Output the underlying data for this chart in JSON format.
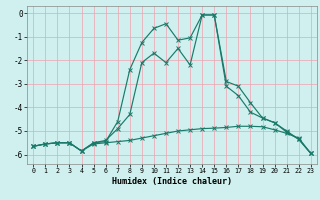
{
  "title": "",
  "xlabel": "Humidex (Indice chaleur)",
  "bg_color": "#cff0ee",
  "grid_color": "#f0a0b0",
  "line_color": "#1a7a6a",
  "xlim": [
    -0.5,
    23.5
  ],
  "ylim": [
    -6.4,
    0.3
  ],
  "xticks": [
    0,
    1,
    2,
    3,
    4,
    5,
    6,
    7,
    8,
    9,
    10,
    11,
    12,
    13,
    14,
    15,
    16,
    17,
    18,
    19,
    20,
    21,
    22,
    23
  ],
  "yticks": [
    0,
    -1,
    -2,
    -3,
    -4,
    -5,
    -6
  ],
  "line1_x": [
    0,
    1,
    2,
    3,
    4,
    5,
    6,
    7,
    8,
    9,
    10,
    11,
    12,
    13,
    14,
    15,
    16,
    17,
    18,
    19,
    20,
    21,
    22,
    23
  ],
  "line1_y": [
    -5.65,
    -5.55,
    -5.5,
    -5.5,
    -5.85,
    -5.55,
    -5.5,
    -5.45,
    -5.4,
    -5.3,
    -5.2,
    -5.1,
    -5.0,
    -4.95,
    -4.9,
    -4.88,
    -4.85,
    -4.8,
    -4.8,
    -4.82,
    -4.95,
    -5.1,
    -5.3,
    -5.95
  ],
  "line2_x": [
    0,
    1,
    2,
    3,
    4,
    5,
    6,
    7,
    8,
    9,
    10,
    11,
    12,
    13,
    14,
    15,
    16,
    17,
    18,
    19,
    20,
    21,
    22,
    23
  ],
  "line2_y": [
    -5.65,
    -5.55,
    -5.5,
    -5.5,
    -5.85,
    -5.5,
    -5.45,
    -4.6,
    -2.4,
    -1.25,
    -0.65,
    -0.45,
    -1.15,
    -1.05,
    -0.08,
    -0.08,
    -2.9,
    -3.1,
    -3.8,
    -4.45,
    -4.65,
    -5.0,
    -5.35,
    -5.95
  ],
  "line3_x": [
    0,
    1,
    2,
    3,
    4,
    5,
    6,
    7,
    8,
    9,
    10,
    11,
    12,
    13,
    14,
    15,
    16,
    17,
    18,
    19,
    20,
    21,
    22,
    23
  ],
  "line3_y": [
    -5.65,
    -5.55,
    -5.5,
    -5.5,
    -5.85,
    -5.5,
    -5.4,
    -4.9,
    -4.3,
    -2.1,
    -1.7,
    -2.1,
    -1.5,
    -2.2,
    -0.08,
    -0.08,
    -3.1,
    -3.5,
    -4.2,
    -4.45,
    -4.65,
    -5.05,
    -5.35,
    -5.95
  ]
}
